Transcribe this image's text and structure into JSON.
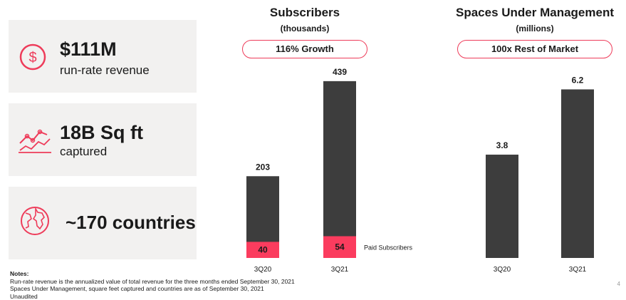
{
  "stats": [
    {
      "icon": "dollar-circle-icon",
      "value": "$111M",
      "label": "run-rate revenue"
    },
    {
      "icon": "growth-chart-icon",
      "value": "18B Sq ft",
      "label": "captured"
    },
    {
      "icon": "globe-icon",
      "value": "~170 countries",
      "label": ""
    }
  ],
  "chart_data": [
    {
      "type": "bar",
      "title": "Subscribers",
      "unit": "(thousands)",
      "badge": "116% Growth",
      "categories": [
        "3Q20",
        "3Q21"
      ],
      "series": [
        {
          "name": "",
          "values": [
            203,
            439
          ],
          "color": "#3d3d3d"
        },
        {
          "name": "Paid Subscribers",
          "values": [
            40,
            54
          ],
          "color": "#fb3c5e"
        }
      ],
      "ylim": [
        0,
        460
      ]
    },
    {
      "type": "bar",
      "title": "Spaces Under Management",
      "unit": "(millions)",
      "badge": "100x Rest of Market",
      "categories": [
        "3Q20",
        "3Q21"
      ],
      "series": [
        {
          "name": "",
          "values": [
            3.8,
            6.2
          ],
          "color": "#3d3d3d"
        }
      ],
      "ylim": [
        0,
        6.5
      ]
    }
  ],
  "notes": {
    "heading": "Notes:",
    "lines": [
      "Run-rate revenue is the annualized value of total revenue for the three months ended September 30, 2021",
      "Spaces Under Management, square feet captured and countries are as of September 30, 2021",
      "Unaudited"
    ]
  },
  "page_number": "4",
  "colors": {
    "accent": "#ee3c5a",
    "bar": "#3d3d3d",
    "paid": "#fb3c5e",
    "card": "#f2f1f0"
  }
}
